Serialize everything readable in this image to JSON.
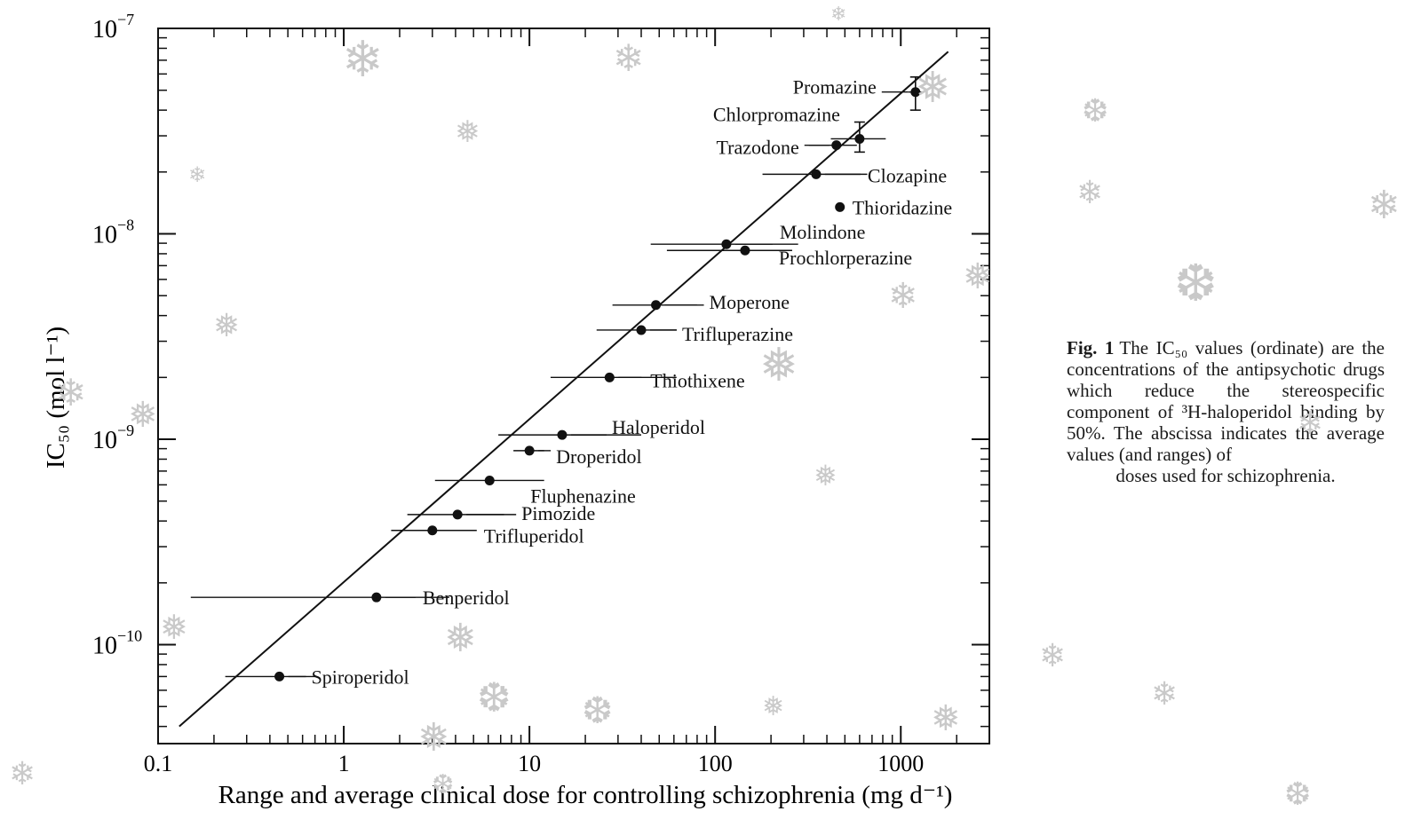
{
  "chart_data": {
    "type": "scatter",
    "x_scale": "log",
    "y_scale": "log",
    "xlim": [
      0.1,
      3000
    ],
    "ylim": [
      3.3e-11,
      1e-07
    ],
    "x_ticks": [
      0.1,
      1,
      10,
      100,
      1000
    ],
    "x_tick_labels": [
      "0.1",
      "1",
      "10",
      "100",
      "1000"
    ],
    "y_tick_labels": [
      {
        "value": 1e-07,
        "base": "10",
        "exp": "−7"
      },
      {
        "value": 1e-08,
        "base": "10",
        "exp": "−8"
      },
      {
        "value": 1e-09,
        "base": "10",
        "exp": "−9"
      },
      {
        "value": 1e-10,
        "base": "10",
        "exp": "−10"
      }
    ],
    "xlabel": "Range and average clinical dose for controlling schizophrenia (mg d⁻¹)",
    "ylabel": "IC₅₀ (mol l⁻¹)",
    "grid": false,
    "regression_line": {
      "x": [
        0.13,
        1800
      ],
      "y": [
        4e-11,
        7.7e-08
      ]
    },
    "points": [
      {
        "name": "Spiroperidol",
        "x": 0.45,
        "y": 7e-11,
        "x_range": [
          0.23,
          0.7
        ]
      },
      {
        "name": "Benperidol",
        "x": 1.5,
        "y": 1.7e-10,
        "x_range": [
          0.15,
          3.7
        ]
      },
      {
        "name": "Trifluperidol",
        "x": 3.0,
        "y": 3.6e-10,
        "x_range": [
          1.8,
          5
        ]
      },
      {
        "name": "Pimozide",
        "x": 4.1,
        "y": 4.3e-10,
        "x_range": [
          2.2,
          7.3
        ]
      },
      {
        "name": "Fluphenazine",
        "x": 6.1,
        "y": 6.3e-10,
        "x_range": [
          3.1,
          12
        ]
      },
      {
        "name": "Droperidol",
        "x": 10,
        "y": 8.8e-10,
        "x_range": [
          8.2,
          12
        ]
      },
      {
        "name": "Haloperidol",
        "x": 15,
        "y": 1.05e-09,
        "x_range": [
          6.8,
          40
        ]
      },
      {
        "name": "Thiothixene",
        "x": 27,
        "y": 2e-09,
        "x_range": [
          13,
          62
        ]
      },
      {
        "name": "Trifluperazine",
        "x": 40,
        "y": 3.4e-09,
        "x_range": [
          23,
          62
        ]
      },
      {
        "name": "Moperone",
        "x": 48,
        "y": 4.5e-09,
        "x_range": [
          28,
          80
        ]
      },
      {
        "name": "Molindone",
        "x": 115,
        "y": 8.9e-09,
        "x_range": [
          45,
          280
        ]
      },
      {
        "name": "Prochlorperazine",
        "x": 145,
        "y": 8.3e-09,
        "x_range": [
          55,
          260
        ]
      },
      {
        "name": "Thioridazine",
        "x": 470,
        "y": 1.35e-08,
        "x_range": null
      },
      {
        "name": "Clozapine",
        "x": 350,
        "y": 1.95e-08,
        "x_range": [
          180,
          660
        ]
      },
      {
        "name": "Trazodone",
        "x": 450,
        "y": 2.7e-08,
        "x_range": [
          320,
          580
        ]
      },
      {
        "name": "Chlorpromazine",
        "x": 600,
        "y": 2.9e-08,
        "x_range": [
          420,
          830
        ],
        "y_err": [
          2.5e-08,
          3.5e-08
        ]
      },
      {
        "name": "Promazine",
        "x": 1200,
        "y": 4.9e-08,
        "x_range": [
          1100,
          1300
        ],
        "y_err": [
          4e-08,
          5.8e-08
        ]
      }
    ]
  },
  "caption": {
    "label": "Fig. 1",
    "text": "The IC₅₀ values (ordinate) are the concentrations of the antipsychotic drugs which reduce the stereospecific component of ³H-haloperidol binding by 50%. The abscissa indicates the average values (and ranges) of",
    "last_line": "doses used for schizophrenia."
  }
}
